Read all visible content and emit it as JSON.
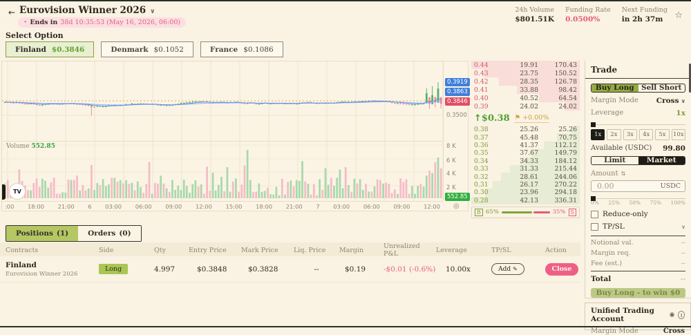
{
  "header": {
    "back_icon": "←",
    "title": "Eurovision Winner 2026",
    "title_chevron": "∨",
    "ends_dot": "•",
    "ends_label": "Ends in",
    "ends_value": "38d 10:35:53 (May 16, 2026, 06:00)",
    "stats": [
      {
        "label": "24h Volume",
        "value": "$801.51K"
      },
      {
        "label": "Funding Rate",
        "value": "0.0500%"
      },
      {
        "label": "Next Funding",
        "value": "in 2h 37m"
      }
    ],
    "favorite_icon": "☆"
  },
  "select_option": {
    "label": "Select Option",
    "options": [
      {
        "name": "Finland",
        "price": "$0.3846"
      },
      {
        "name": "Denmark",
        "price": "$0.1052"
      },
      {
        "name": "France",
        "price": "$0.1086"
      }
    ]
  },
  "chart": {
    "volume_label": "Volume",
    "volume_value": "552.85",
    "markers": [
      {
        "text": "0.3919",
        "color": "blue"
      },
      {
        "text": "0.3863",
        "color": "blue"
      },
      {
        "text": "0.3846",
        "color": "red"
      }
    ],
    "price_tick": "0.3500",
    "volume_ticks": [
      "8 K",
      "6 K",
      "4 K",
      "2 K"
    ],
    "volume_badge": "552.85",
    "time_ticks": [
      ":00",
      "18:00",
      "21:00",
      "6",
      "03:00",
      "06:00",
      "09:00",
      "12:00",
      "15:00",
      "18:00",
      "21:00",
      "7",
      "03:00",
      "06:00",
      "09:00",
      "12:00"
    ],
    "tv_logo": "TV",
    "jump_icon": "◎",
    "colors": {
      "up": "#57b467",
      "down": "#ef8aa0",
      "vol_up": "#a9d9ac",
      "vol_down": "#f5bcc7",
      "ma1": "#5b8def",
      "ma2": "#93b6f0",
      "grid": "#eee3cb",
      "grid2": "#f3ead5",
      "mark_line": "#d9a84e"
    }
  },
  "orderbook": {
    "asks": [
      [
        "0.44",
        "19.91",
        "170.43"
      ],
      [
        "0.43",
        "23.75",
        "150.52"
      ],
      [
        "0.42",
        "28.35",
        "126.78"
      ],
      [
        "0.41",
        "33.88",
        "98.42"
      ],
      [
        "0.40",
        "40.52",
        "64.54"
      ],
      [
        "0.39",
        "24.02",
        "24.02"
      ]
    ],
    "last_dir": "↑",
    "last_price": "$0.38",
    "mark_flag": "⚑",
    "mark_change": "+0.00%",
    "bids": [
      [
        "0.38",
        "25.26",
        "25.26"
      ],
      [
        "0.37",
        "45.48",
        "70.75"
      ],
      [
        "0.36",
        "41.37",
        "112.12"
      ],
      [
        "0.35",
        "37.67",
        "149.79"
      ],
      [
        "0.34",
        "34.33",
        "184.12"
      ],
      [
        "0.33",
        "31.33",
        "215.44"
      ],
      [
        "0.32",
        "28.61",
        "244.06"
      ],
      [
        "0.31",
        "26.17",
        "270.22"
      ],
      [
        "0.30",
        "23.96",
        "294.18"
      ],
      [
        "0.28",
        "42.13",
        "336.31"
      ]
    ],
    "buy_letter": "B",
    "buy_pct": "65%",
    "sell_pct": "35%",
    "sell_letter": "S"
  },
  "trade": {
    "title": "Trade",
    "tabs": [
      "Buy Long",
      "Sell Short"
    ],
    "margin_mode_label": "Margin Mode",
    "margin_mode_value": "Cross",
    "chevron": "∨",
    "leverage_label": "Leverage",
    "leverage_value": "1x",
    "leverage_options": [
      "1x",
      "2x",
      "3x",
      "4x",
      "5x",
      "10x"
    ],
    "available_label": "Available (USDC)",
    "available_value": "99.80",
    "order_type_tabs": [
      "Limit",
      "Market"
    ],
    "amount_label": "Amount",
    "amount_icon": "⇅",
    "amount_placeholder": "0.00",
    "amount_unit": "USDC",
    "percent_labels": [
      "0%",
      "25%",
      "50%",
      "75%",
      "100%"
    ],
    "reduce_only_label": "Reduce-only",
    "tpsl_label": "TP/SL",
    "summary": [
      {
        "label": "Notional val.",
        "value": "--"
      },
      {
        "label": "Margin req.",
        "value": "--"
      },
      {
        "label": "Fee (est.)",
        "value": "--"
      }
    ],
    "total_label": "Total",
    "total_value": "--",
    "submit_label": "Buy Long - to win $0"
  },
  "account": {
    "title": "Unified Trading Account",
    "eye_icon": "◉",
    "info_icon": "i",
    "margin_mode_label": "Margin Mode",
    "margin_mode_value": "Cross"
  },
  "positions": {
    "tabs": [
      {
        "label": "Positions",
        "count": "(1)"
      },
      {
        "label": "Orders",
        "count": "(0)"
      }
    ],
    "headers": [
      "Contracts",
      "Side",
      "Qty",
      "Entry Price",
      "Mark Price",
      "Liq. Price",
      "Margin",
      "Unrealized P&L",
      "Leverage",
      "TP/SL",
      "Action"
    ],
    "row": {
      "name": "Finland",
      "subtitle": "Eurovision Winner 2026",
      "side": "Long",
      "qty": "4.997",
      "entry": "$0.3848",
      "mark": "$0.3828",
      "liq": "--",
      "margin": "$0.19",
      "pnl": "-$0.01 (-0.6%)",
      "leverage": "10.00x",
      "add_label": "Add",
      "edit_icon": "✎",
      "close_label": "Close"
    }
  }
}
